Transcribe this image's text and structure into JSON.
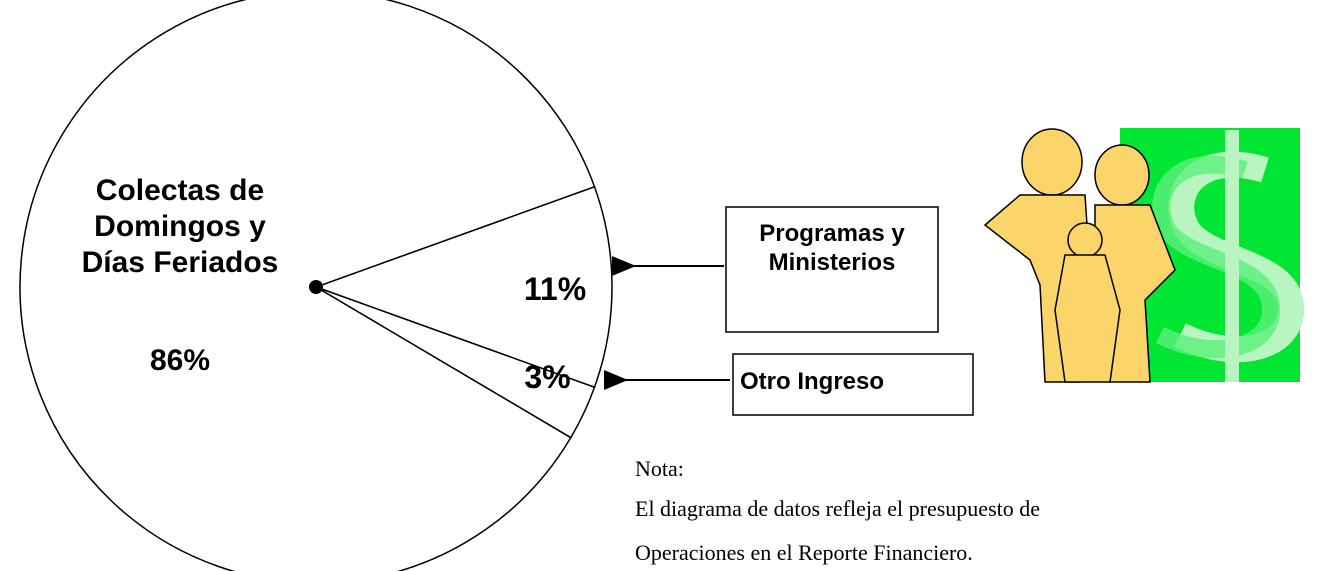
{
  "chart_data": {
    "type": "pie",
    "categories": [
      "Colectas de Domingos y Días Feriados",
      "Programas y Ministerios",
      "Otro Ingreso"
    ],
    "values": [
      86,
      11,
      3
    ],
    "value_labels": [
      "86%",
      "11%",
      "3%"
    ],
    "colors": [
      "#ffffff",
      "#ffffff",
      "#ffffff"
    ]
  },
  "note": {
    "title": "Nota:",
    "lines": [
      "El diagrama de datos refleja el presupuesto de",
      "Operaciones en el Reporte Financiero."
    ]
  }
}
